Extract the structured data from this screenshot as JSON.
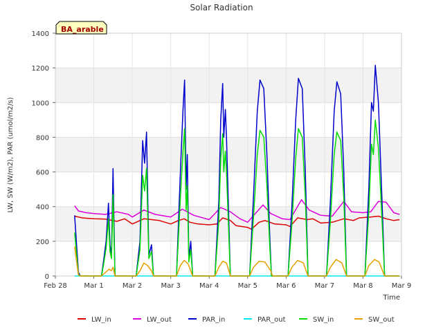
{
  "chart_data": {
    "type": "line",
    "title": "Solar Radiation",
    "xlabel": "Time",
    "ylabel": "LW, SW (W/m2), PAR (umol/m2/s)",
    "site_label": "BA_arable",
    "ylim": [
      0,
      1400
    ],
    "xlim": [
      0,
      9
    ],
    "yticks": [
      0,
      200,
      400,
      600,
      800,
      1000,
      1200,
      1400
    ],
    "xticks": [
      {
        "x": 0,
        "label": "Feb 28"
      },
      {
        "x": 1,
        "label": "Mar 1"
      },
      {
        "x": 2,
        "label": "Mar 2"
      },
      {
        "x": 3,
        "label": "Mar 3"
      },
      {
        "x": 4,
        "label": "Mar 4"
      },
      {
        "x": 5,
        "label": "Mar 5"
      },
      {
        "x": 6,
        "label": "Mar 6"
      },
      {
        "x": 7,
        "label": "Mar 7"
      },
      {
        "x": 8,
        "label": "Mar 8"
      },
      {
        "x": 9,
        "label": "Mar 9"
      }
    ],
    "grid": true,
    "legend_position": "bottom",
    "series": [
      {
        "name": "LW_in",
        "color": "#dd0000",
        "points": [
          [
            0.5,
            345
          ],
          [
            0.7,
            335
          ],
          [
            1.0,
            330
          ],
          [
            1.3,
            328
          ],
          [
            1.6,
            315
          ],
          [
            1.8,
            330
          ],
          [
            2.0,
            300
          ],
          [
            2.3,
            330
          ],
          [
            2.7,
            320
          ],
          [
            3.0,
            300
          ],
          [
            3.2,
            320
          ],
          [
            3.35,
            330
          ],
          [
            3.5,
            310
          ],
          [
            3.7,
            300
          ],
          [
            4.0,
            295
          ],
          [
            4.2,
            300
          ],
          [
            4.35,
            335
          ],
          [
            4.55,
            320
          ],
          [
            4.7,
            290
          ],
          [
            5.0,
            280
          ],
          [
            5.1,
            270
          ],
          [
            5.3,
            310
          ],
          [
            5.45,
            320
          ],
          [
            5.7,
            300
          ],
          [
            6.0,
            295
          ],
          [
            6.1,
            285
          ],
          [
            6.3,
            335
          ],
          [
            6.55,
            325
          ],
          [
            6.7,
            330
          ],
          [
            6.9,
            305
          ],
          [
            7.2,
            310
          ],
          [
            7.5,
            330
          ],
          [
            7.75,
            320
          ],
          [
            7.9,
            335
          ],
          [
            8.2,
            340
          ],
          [
            8.4,
            345
          ],
          [
            8.6,
            330
          ],
          [
            8.8,
            320
          ],
          [
            8.95,
            325
          ]
        ]
      },
      {
        "name": "LW_out",
        "color": "#dd00dd",
        "points": [
          [
            0.5,
            405
          ],
          [
            0.6,
            375
          ],
          [
            0.8,
            365
          ],
          [
            1.0,
            360
          ],
          [
            1.3,
            355
          ],
          [
            1.6,
            370
          ],
          [
            1.9,
            355
          ],
          [
            2.0,
            340
          ],
          [
            2.3,
            380
          ],
          [
            2.6,
            355
          ],
          [
            3.0,
            340
          ],
          [
            3.3,
            385
          ],
          [
            3.6,
            350
          ],
          [
            4.0,
            325
          ],
          [
            4.3,
            395
          ],
          [
            4.55,
            370
          ],
          [
            4.8,
            330
          ],
          [
            5.0,
            310
          ],
          [
            5.4,
            410
          ],
          [
            5.6,
            360
          ],
          [
            5.9,
            330
          ],
          [
            6.1,
            325
          ],
          [
            6.4,
            440
          ],
          [
            6.6,
            380
          ],
          [
            6.9,
            350
          ],
          [
            7.2,
            345
          ],
          [
            7.5,
            430
          ],
          [
            7.7,
            370
          ],
          [
            8.0,
            365
          ],
          [
            8.2,
            370
          ],
          [
            8.4,
            430
          ],
          [
            8.6,
            425
          ],
          [
            8.8,
            365
          ],
          [
            8.95,
            355
          ]
        ]
      },
      {
        "name": "PAR_in",
        "color": "#0000cc",
        "points": [
          [
            0.5,
            350
          ],
          [
            0.6,
            20
          ],
          [
            0.65,
            0
          ],
          [
            1.2,
            0
          ],
          [
            1.25,
            80
          ],
          [
            1.32,
            200
          ],
          [
            1.38,
            420
          ],
          [
            1.42,
            180
          ],
          [
            1.46,
            120
          ],
          [
            1.5,
            620
          ],
          [
            1.55,
            0
          ],
          [
            2.1,
            0
          ],
          [
            2.2,
            200
          ],
          [
            2.27,
            780
          ],
          [
            2.32,
            650
          ],
          [
            2.37,
            830
          ],
          [
            2.43,
            120
          ],
          [
            2.5,
            180
          ],
          [
            2.55,
            0
          ],
          [
            3.15,
            0
          ],
          [
            3.25,
            600
          ],
          [
            3.32,
            960
          ],
          [
            3.36,
            1130
          ],
          [
            3.4,
            500
          ],
          [
            3.43,
            700
          ],
          [
            3.47,
            100
          ],
          [
            3.52,
            200
          ],
          [
            3.57,
            0
          ],
          [
            4.15,
            0
          ],
          [
            4.25,
            430
          ],
          [
            4.3,
            900
          ],
          [
            4.35,
            1110
          ],
          [
            4.38,
            800
          ],
          [
            4.42,
            960
          ],
          [
            4.45,
            800
          ],
          [
            4.5,
            400
          ],
          [
            4.55,
            0
          ],
          [
            5.05,
            0
          ],
          [
            5.15,
            450
          ],
          [
            5.25,
            950
          ],
          [
            5.32,
            1130
          ],
          [
            5.42,
            1080
          ],
          [
            5.5,
            700
          ],
          [
            5.58,
            200
          ],
          [
            5.62,
            0
          ],
          [
            6.05,
            0
          ],
          [
            6.15,
            400
          ],
          [
            6.25,
            900
          ],
          [
            6.32,
            1140
          ],
          [
            6.42,
            1080
          ],
          [
            6.5,
            600
          ],
          [
            6.57,
            0
          ],
          [
            7.05,
            0
          ],
          [
            7.15,
            420
          ],
          [
            7.25,
            950
          ],
          [
            7.32,
            1120
          ],
          [
            7.42,
            1050
          ],
          [
            7.5,
            600
          ],
          [
            7.57,
            0
          ],
          [
            8.05,
            0
          ],
          [
            8.15,
            500
          ],
          [
            8.22,
            1000
          ],
          [
            8.27,
            950
          ],
          [
            8.32,
            1215
          ],
          [
            8.4,
            1000
          ],
          [
            8.5,
            400
          ],
          [
            8.56,
            0
          ],
          [
            8.95,
            0
          ]
        ]
      },
      {
        "name": "PAR_out",
        "color": "#00e5e5",
        "points": [
          [
            0.5,
            0
          ],
          [
            8.95,
            0
          ]
        ]
      },
      {
        "name": "SW_in",
        "color": "#00dd00",
        "points": [
          [
            0.5,
            250
          ],
          [
            0.6,
            10
          ],
          [
            0.65,
            0
          ],
          [
            1.2,
            0
          ],
          [
            1.25,
            60
          ],
          [
            1.32,
            160
          ],
          [
            1.38,
            330
          ],
          [
            1.42,
            140
          ],
          [
            1.46,
            100
          ],
          [
            1.5,
            470
          ],
          [
            1.55,
            0
          ],
          [
            2.1,
            0
          ],
          [
            2.2,
            150
          ],
          [
            2.27,
            580
          ],
          [
            2.32,
            490
          ],
          [
            2.37,
            620
          ],
          [
            2.43,
            100
          ],
          [
            2.5,
            140
          ],
          [
            2.55,
            0
          ],
          [
            3.15,
            0
          ],
          [
            3.25,
            450
          ],
          [
            3.32,
            720
          ],
          [
            3.36,
            850
          ],
          [
            3.4,
            380
          ],
          [
            3.43,
            520
          ],
          [
            3.47,
            80
          ],
          [
            3.52,
            150
          ],
          [
            3.57,
            0
          ],
          [
            4.15,
            0
          ],
          [
            4.25,
            320
          ],
          [
            4.3,
            680
          ],
          [
            4.35,
            820
          ],
          [
            4.38,
            600
          ],
          [
            4.42,
            720
          ],
          [
            4.45,
            600
          ],
          [
            4.5,
            300
          ],
          [
            4.55,
            0
          ],
          [
            5.05,
            0
          ],
          [
            5.15,
            330
          ],
          [
            5.25,
            700
          ],
          [
            5.32,
            840
          ],
          [
            5.42,
            800
          ],
          [
            5.5,
            520
          ],
          [
            5.58,
            150
          ],
          [
            5.62,
            0
          ],
          [
            6.05,
            0
          ],
          [
            6.15,
            300
          ],
          [
            6.25,
            680
          ],
          [
            6.32,
            850
          ],
          [
            6.42,
            800
          ],
          [
            6.5,
            450
          ],
          [
            6.57,
            0
          ],
          [
            7.05,
            0
          ],
          [
            7.15,
            310
          ],
          [
            7.25,
            700
          ],
          [
            7.32,
            830
          ],
          [
            7.42,
            780
          ],
          [
            7.5,
            450
          ],
          [
            7.57,
            0
          ],
          [
            8.05,
            0
          ],
          [
            8.15,
            370
          ],
          [
            8.22,
            760
          ],
          [
            8.27,
            700
          ],
          [
            8.32,
            900
          ],
          [
            8.4,
            740
          ],
          [
            8.5,
            300
          ],
          [
            8.56,
            0
          ],
          [
            8.95,
            0
          ]
        ]
      },
      {
        "name": "SW_out",
        "color": "#e5a000",
        "points": [
          [
            0.5,
            170
          ],
          [
            0.6,
            5
          ],
          [
            0.65,
            0
          ],
          [
            1.2,
            0
          ],
          [
            1.3,
            20
          ],
          [
            1.4,
            40
          ],
          [
            1.45,
            30
          ],
          [
            1.5,
            50
          ],
          [
            1.55,
            0
          ],
          [
            2.1,
            0
          ],
          [
            2.2,
            30
          ],
          [
            2.3,
            75
          ],
          [
            2.4,
            60
          ],
          [
            2.5,
            30
          ],
          [
            2.55,
            0
          ],
          [
            3.15,
            0
          ],
          [
            3.25,
            60
          ],
          [
            3.35,
            90
          ],
          [
            3.45,
            70
          ],
          [
            3.52,
            30
          ],
          [
            3.57,
            0
          ],
          [
            4.15,
            0
          ],
          [
            4.25,
            50
          ],
          [
            4.35,
            85
          ],
          [
            4.45,
            75
          ],
          [
            4.55,
            0
          ],
          [
            5.05,
            0
          ],
          [
            5.15,
            50
          ],
          [
            5.3,
            85
          ],
          [
            5.45,
            80
          ],
          [
            5.6,
            30
          ],
          [
            5.65,
            0
          ],
          [
            6.05,
            0
          ],
          [
            6.15,
            50
          ],
          [
            6.3,
            90
          ],
          [
            6.45,
            75
          ],
          [
            6.57,
            0
          ],
          [
            7.05,
            0
          ],
          [
            7.15,
            50
          ],
          [
            7.3,
            95
          ],
          [
            7.45,
            75
          ],
          [
            7.57,
            0
          ],
          [
            8.05,
            0
          ],
          [
            8.15,
            60
          ],
          [
            8.3,
            95
          ],
          [
            8.42,
            80
          ],
          [
            8.56,
            0
          ],
          [
            8.95,
            0
          ]
        ]
      }
    ]
  }
}
